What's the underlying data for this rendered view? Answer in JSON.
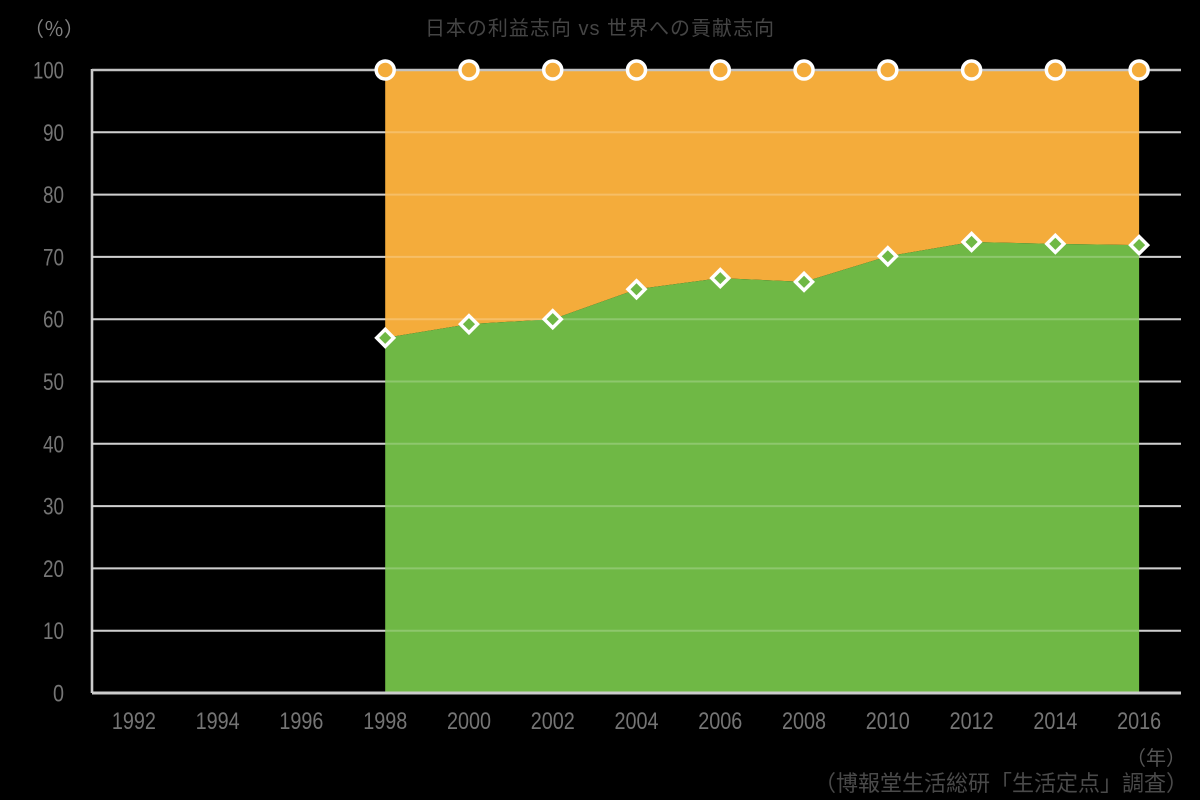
{
  "chart_data": {
    "type": "area",
    "stacked": true,
    "stack_total": 100,
    "title": "日本の利益志向 vs 世界への貢献志向",
    "y_unit_label": "（％）",
    "x_unit_label": "（年）",
    "source_note": "（博報堂生活総研「生活定点」調査）",
    "xlabel": "",
    "ylabel": "（％）",
    "ylim": [
      0,
      100
    ],
    "xlim": [
      1991,
      2017
    ],
    "grid": true,
    "legend": false,
    "x": [
      1998,
      2000,
      2002,
      2004,
      2006,
      2008,
      2010,
      2012,
      2014,
      2016
    ],
    "x_ticks": [
      1992,
      1994,
      1996,
      1998,
      2000,
      2002,
      2004,
      2006,
      2008,
      2010,
      2012,
      2014,
      2016
    ],
    "y_ticks": [
      0,
      10,
      20,
      30,
      40,
      50,
      60,
      70,
      80,
      90,
      100
    ],
    "series": [
      {
        "name": "green-lower-area",
        "marker": "diamond",
        "color": "#6FB845",
        "values": [
          57.0,
          59.2,
          60.0,
          64.8,
          66.6,
          66.0,
          70.1,
          72.4,
          72.1,
          71.9
        ]
      },
      {
        "name": "orange-upper-area",
        "marker": "circle",
        "color": "#F4AC3B",
        "values": [
          100,
          100,
          100,
          100,
          100,
          100,
          100,
          100,
          100,
          100
        ]
      }
    ],
    "colors": {
      "background": "#000000",
      "grid": "#C2C2C2",
      "grid_overlay": "rgba(255,255,255,0.22)",
      "axis": "#CCCCCC",
      "tick_text": "#757575",
      "title_text": "#454545",
      "unit_text": "#828282",
      "source_text": "#4A4A4A",
      "marker_stroke": "#FFFFFF"
    }
  }
}
